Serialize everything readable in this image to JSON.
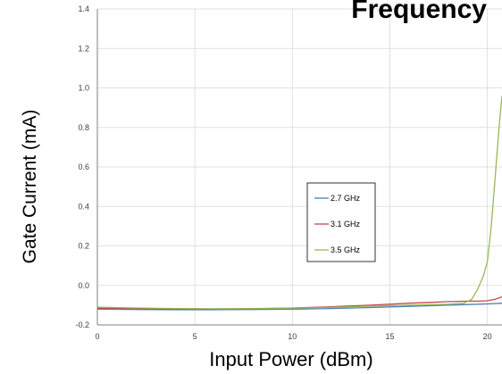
{
  "chart_data": {
    "type": "line",
    "title": "Frequency",
    "xlabel": "Input Power (dBm)",
    "ylabel": "Gate Current (mA)",
    "xlim": [
      0,
      20.75
    ],
    "ylim": [
      -0.2,
      1.4
    ],
    "x_ticks": [
      "0",
      "5",
      "10",
      "15",
      "20"
    ],
    "x_tick_values": [
      0,
      5,
      10,
      15,
      20
    ],
    "y_ticks": [
      "-0.2",
      "0.0",
      "0.2",
      "0.4",
      "0.6",
      "0.8",
      "1.0",
      "1.2",
      "1.4"
    ],
    "y_tick_values": [
      -0.2,
      0,
      0.2,
      0.4,
      0.6,
      0.8,
      1.0,
      1.2,
      1.4
    ],
    "grid": true,
    "legend_position": "center",
    "series": [
      {
        "name": "2.7 GHz",
        "color": "#4a7ebb",
        "x": [
          0,
          2,
          4,
          6,
          8,
          10,
          12,
          14,
          16,
          18,
          19,
          20,
          20.75
        ],
        "y": [
          -0.12,
          -0.122,
          -0.123,
          -0.123,
          -0.122,
          -0.12,
          -0.117,
          -0.112,
          -0.106,
          -0.1,
          -0.097,
          -0.094,
          -0.09
        ]
      },
      {
        "name": "3.1 GHz",
        "color": "#be4b48",
        "x": [
          0,
          2,
          4,
          6,
          8,
          10,
          12,
          14,
          15,
          16,
          17,
          18,
          19,
          19.5,
          20,
          20.4,
          20.75
        ],
        "y": [
          -0.115,
          -0.118,
          -0.12,
          -0.12,
          -0.118,
          -0.114,
          -0.108,
          -0.1,
          -0.095,
          -0.09,
          -0.086,
          -0.082,
          -0.08,
          -0.08,
          -0.078,
          -0.07,
          -0.058
        ]
      },
      {
        "name": "3.5 GHz",
        "color": "#98b954",
        "x": [
          0,
          2,
          4,
          6,
          8,
          10,
          12,
          14,
          16,
          18,
          18.8,
          19.2,
          19.5,
          19.8,
          20,
          20.2,
          20.4,
          20.6,
          20.75
        ],
        "y": [
          -0.11,
          -0.114,
          -0.117,
          -0.118,
          -0.117,
          -0.115,
          -0.111,
          -0.105,
          -0.1,
          -0.095,
          -0.09,
          -0.07,
          -0.02,
          0.05,
          0.12,
          0.3,
          0.55,
          0.8,
          0.96
        ]
      }
    ]
  }
}
